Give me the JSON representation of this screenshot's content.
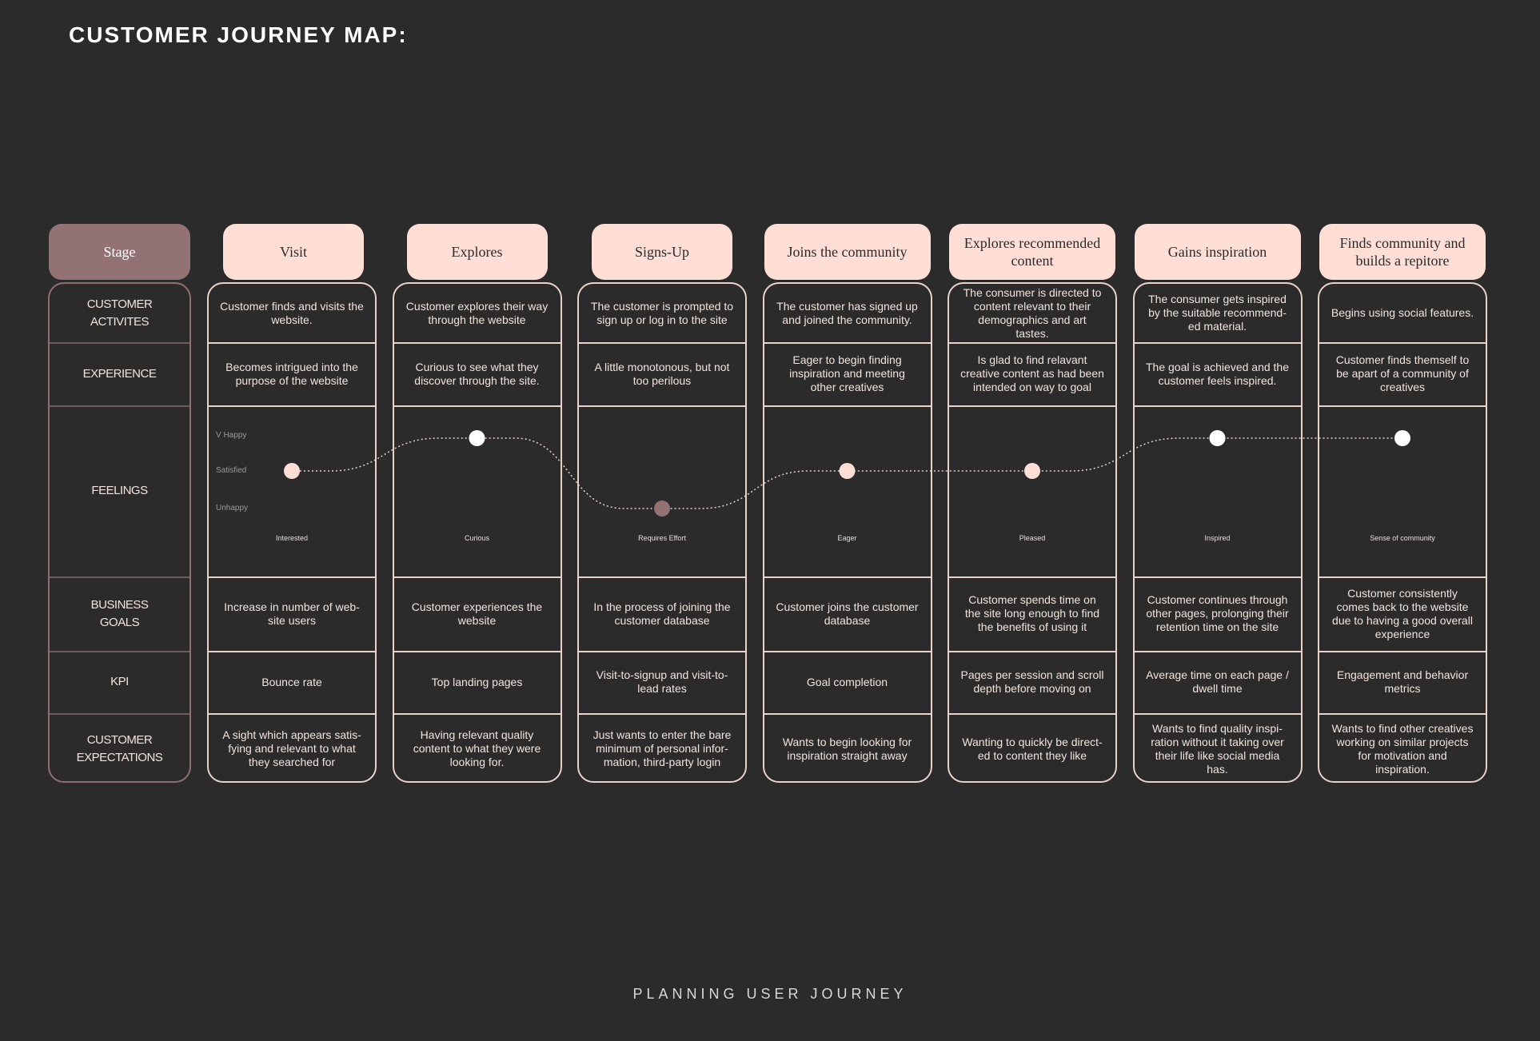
{
  "page": {
    "title": "CUSTOMER JOURNEY MAP:",
    "footer": "PLANNING   USER   JOURNEY"
  },
  "stage_label": "Stage",
  "row_labels": [
    "CUSTOMER\nACTIVITES",
    "EXPERIENCE",
    "FEELINGS",
    "BUSINESS\nGOALS",
    "KPI",
    "CUSTOMER\nEXPECTATIONS"
  ],
  "feeling_scale": [
    "V Happy",
    "Satisfied",
    "Unhappy"
  ],
  "colors": {
    "background": "#2b2b2b",
    "header": "#ffded6",
    "accent": "#937274",
    "line": "#e8d2c9",
    "dot_neutral": "#ffded6",
    "dot_happy": "#ffffff",
    "dot_unhappy": "#937274"
  },
  "stages": [
    {
      "name": "Visit",
      "activity": "Customer finds and visits the website.",
      "experience": "Becomes intrigued into the purpose of the website",
      "feeling": "Interested",
      "level": "Satisfied",
      "business_goal": "Increase in number of web-site users",
      "kpi": "Bounce rate",
      "expectation": "A sight which appears satis-fying and relevant to what they searched for"
    },
    {
      "name": "Explores",
      "activity": "Customer explores their way through the website",
      "experience": "Curious to see what they discover through the site.",
      "feeling": "Curious",
      "level": "V Happy",
      "business_goal": "Customer experiences the website",
      "kpi": "Top landing pages",
      "expectation": "Having relevant quality content to what they were looking for."
    },
    {
      "name": "Signs-Up",
      "activity": "The customer is prompted to sign up or log in to the site",
      "experience": "A little monotonous, but not too perilous",
      "feeling": "Requires Effort",
      "level": "Unhappy",
      "business_goal": "In the process of joining the customer database",
      "kpi": "Visit-to-signup and visit-to-lead rates",
      "expectation": "Just wants to enter the bare minimum of personal infor-mation, third-party login"
    },
    {
      "name": "Joins the community",
      "activity": "The customer has signed up and joined the community.",
      "experience": "Eager to begin finding inspiration and meeting other creatives",
      "feeling": "Eager",
      "level": "Satisfied",
      "business_goal": "Customer joins the customer database",
      "kpi": "Goal completion",
      "expectation": "Wants to begin looking for inspiration straight away"
    },
    {
      "name": "Explores recommended content",
      "activity": "The consumer is directed to content relevant to their demographics and art tastes.",
      "experience": "Is glad to find relavant creative content as had been intended on way to goal",
      "feeling": "Pleased",
      "level": "Satisfied",
      "business_goal": "Customer spends time on the site long enough to find the benefits of using it",
      "kpi": "Pages per session and scroll depth before moving on",
      "expectation": "Wanting to quickly be direct-ed to content they like"
    },
    {
      "name": "Gains inspiration",
      "activity": "The consumer gets inspired by the suitable recommend-ed material.",
      "experience": "The goal is achieved and the customer feels inspired.",
      "feeling": "Inspired",
      "level": "V Happy",
      "business_goal": "Customer continues through other pages, prolonging their retention time on the site",
      "kpi": "Average time on each page / dwell time",
      "expectation": "Wants to find quality inspi-ration without it taking over their life like social media has."
    },
    {
      "name": "Finds community and builds a repitore",
      "activity": "Begins using social features.",
      "experience": "Customer finds themself to be apart of a community of creatives",
      "feeling": "Sense of community",
      "level": "V Happy",
      "business_goal": "Customer consistently comes back to the website due to having a good overall experience",
      "kpi": "Engagement and behavior metrics",
      "expectation": "Wants to find other creatives working on similar projects for motivation and inspiration."
    }
  ]
}
